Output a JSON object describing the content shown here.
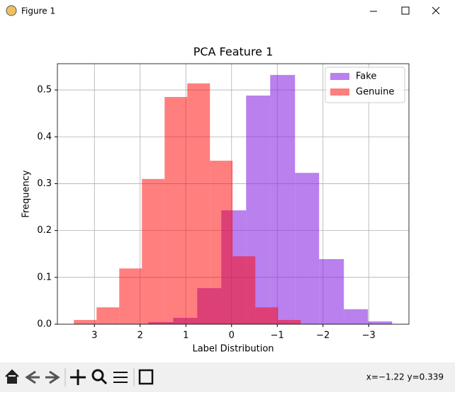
{
  "window": {
    "title": "Figure 1",
    "status": "x=−1.22 y=0.339"
  },
  "chart_data": {
    "type": "histogram",
    "title": "PCA Feature 1",
    "x_label": "Label Distribution",
    "y_label": "Frequency",
    "series": [
      {
        "name": "Fake",
        "color": "#8a2be2",
        "alpha": 0.6,
        "bins": [
          1.822,
          1.279,
          0.752,
          0.225,
          -0.318,
          -0.845,
          -1.388,
          -1.915,
          -2.457,
          -2.984,
          -3.512
        ],
        "values": [
          0.0045,
          0.0136,
          0.077,
          0.243,
          0.488,
          0.532,
          0.323,
          0.139,
          0.032,
          0.006
        ]
      },
      {
        "name": "Genuine",
        "color": "#ff0000",
        "alpha": 0.5,
        "bins": [
          3.45,
          2.953,
          2.457,
          1.961,
          1.465,
          0.969,
          0.473,
          -0.023,
          -0.519,
          -1.016,
          -1.512
        ],
        "values": [
          0.009,
          0.036,
          0.119,
          0.31,
          0.485,
          0.514,
          0.349,
          0.145,
          0.036,
          0.009
        ]
      }
    ],
    "xlim": [
      3.81,
      -3.88
    ],
    "xticks": [
      3,
      2,
      1,
      0,
      {
        "value": -1,
        "label": "−1"
      },
      {
        "value": -2,
        "label": "−2"
      },
      {
        "value": -3,
        "label": "−3"
      }
    ],
    "ylim": [
      0,
      0.556
    ],
    "yticks": [
      {
        "value": 0,
        "label": "0.0"
      },
      0.1,
      0.2,
      0.3,
      0.4,
      0.5
    ],
    "grid": true,
    "legend": "upper right"
  }
}
